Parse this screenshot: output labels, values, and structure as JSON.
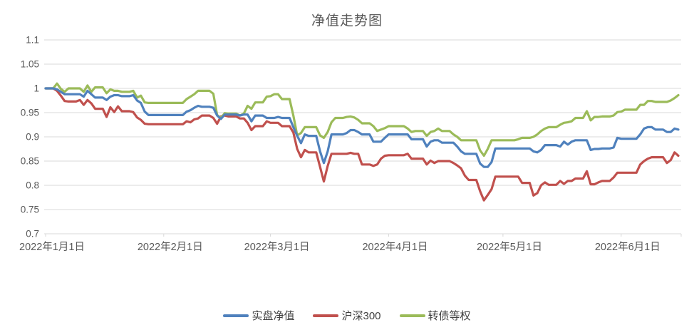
{
  "title": "净值走势图",
  "legend": [
    {
      "label": "实盘净值",
      "color": "#4F81BD"
    },
    {
      "label": "沪深300",
      "color": "#C0504D"
    },
    {
      "label": "转债等权",
      "color": "#9BBB59"
    }
  ],
  "colors": {
    "gridline": "#d9d9d9",
    "axis": "#bfbfbf",
    "tick_label": "#595959",
    "title": "#595959",
    "background": "#ffffff"
  },
  "chart_data": {
    "type": "line",
    "title": "净值走势图",
    "xlabel": "",
    "ylabel": "",
    "grid": true,
    "legend_position": "bottom",
    "sampling": "daily, 2022-01-01 to 2022-06-16, weekends/holidays flat",
    "y_axis": {
      "min": 0.7,
      "max": 1.1,
      "step": 0.05,
      "tick_labels": [
        "1.1",
        "1.05",
        "1",
        "0.95",
        "0.9",
        "0.85",
        "0.8",
        "0.75",
        "0.7"
      ]
    },
    "x_axis": {
      "tick_labels": [
        "2022年1月1日",
        "2022年2月1日",
        "2022年3月1日",
        "2022年4月1日",
        "2022年5月1日",
        "2022年6月1日"
      ],
      "tick_point_indices": [
        0,
        31,
        59,
        90,
        120,
        151
      ],
      "total_points": 167
    },
    "series": [
      {
        "name": "实盘净值",
        "color": "#4F81BD",
        "values": [
          1.0,
          1.0,
          1.0,
          0.998,
          0.993,
          0.988,
          0.988,
          0.988,
          0.988,
          0.988,
          0.983,
          0.995,
          0.988,
          0.981,
          0.981,
          0.981,
          0.976,
          0.983,
          0.986,
          0.986,
          0.984,
          0.984,
          0.984,
          0.986,
          0.975,
          0.97,
          0.952,
          0.945,
          0.945,
          0.945,
          0.945,
          0.945,
          0.945,
          0.945,
          0.945,
          0.945,
          0.945,
          0.952,
          0.955,
          0.96,
          0.964,
          0.962,
          0.962,
          0.962,
          0.96,
          0.944,
          0.937,
          0.946,
          0.946,
          0.946,
          0.946,
          0.944,
          0.946,
          0.946,
          0.932,
          0.944,
          0.944,
          0.944,
          0.939,
          0.939,
          0.939,
          0.941,
          0.939,
          0.939,
          0.939,
          0.92,
          0.902,
          0.887,
          0.905,
          0.902,
          0.902,
          0.902,
          0.87,
          0.846,
          0.87,
          0.905,
          0.905,
          0.905,
          0.905,
          0.908,
          0.914,
          0.914,
          0.91,
          0.905,
          0.905,
          0.905,
          0.89,
          0.89,
          0.89,
          0.898,
          0.905,
          0.905,
          0.905,
          0.905,
          0.905,
          0.905,
          0.895,
          0.895,
          0.895,
          0.895,
          0.88,
          0.89,
          0.893,
          0.893,
          0.888,
          0.888,
          0.888,
          0.888,
          0.88,
          0.87,
          0.865,
          0.865,
          0.865,
          0.865,
          0.845,
          0.838,
          0.838,
          0.848,
          0.876,
          0.876,
          0.876,
          0.876,
          0.876,
          0.876,
          0.876,
          0.876,
          0.876,
          0.876,
          0.87,
          0.868,
          0.873,
          0.883,
          0.883,
          0.883,
          0.883,
          0.88,
          0.89,
          0.884,
          0.89,
          0.893,
          0.893,
          0.893,
          0.893,
          0.873,
          0.875,
          0.875,
          0.876,
          0.876,
          0.876,
          0.878,
          0.898,
          0.896,
          0.896,
          0.896,
          0.896,
          0.896,
          0.905,
          0.917,
          0.92,
          0.92,
          0.915,
          0.915,
          0.915,
          0.91,
          0.91,
          0.917,
          0.915
        ]
      },
      {
        "name": "沪深300",
        "color": "#C0504D",
        "values": [
          1.0,
          1.0,
          1.0,
          0.995,
          0.985,
          0.974,
          0.973,
          0.973,
          0.973,
          0.976,
          0.966,
          0.976,
          0.969,
          0.958,
          0.958,
          0.958,
          0.941,
          0.961,
          0.951,
          0.963,
          0.953,
          0.953,
          0.953,
          0.951,
          0.94,
          0.935,
          0.927,
          0.926,
          0.926,
          0.926,
          0.926,
          0.926,
          0.926,
          0.926,
          0.926,
          0.926,
          0.926,
          0.932,
          0.93,
          0.936,
          0.938,
          0.944,
          0.944,
          0.944,
          0.939,
          0.927,
          0.942,
          0.944,
          0.942,
          0.942,
          0.942,
          0.938,
          0.938,
          0.929,
          0.914,
          0.922,
          0.922,
          0.922,
          0.932,
          0.929,
          0.929,
          0.929,
          0.922,
          0.922,
          0.922,
          0.909,
          0.875,
          0.858,
          0.873,
          0.868,
          0.868,
          0.868,
          0.838,
          0.808,
          0.84,
          0.865,
          0.865,
          0.865,
          0.865,
          0.865,
          0.867,
          0.865,
          0.865,
          0.843,
          0.843,
          0.843,
          0.84,
          0.843,
          0.855,
          0.861,
          0.862,
          0.862,
          0.862,
          0.862,
          0.862,
          0.865,
          0.855,
          0.855,
          0.855,
          0.855,
          0.843,
          0.851,
          0.846,
          0.85,
          0.85,
          0.85,
          0.85,
          0.846,
          0.841,
          0.835,
          0.82,
          0.811,
          0.811,
          0.811,
          0.788,
          0.769,
          0.78,
          0.792,
          0.818,
          0.818,
          0.818,
          0.818,
          0.818,
          0.818,
          0.818,
          0.805,
          0.805,
          0.805,
          0.779,
          0.784,
          0.8,
          0.806,
          0.801,
          0.801,
          0.801,
          0.809,
          0.803,
          0.809,
          0.809,
          0.814,
          0.814,
          0.814,
          0.829,
          0.802,
          0.802,
          0.806,
          0.809,
          0.809,
          0.809,
          0.816,
          0.826,
          0.826,
          0.826,
          0.826,
          0.826,
          0.826,
          0.843,
          0.85,
          0.855,
          0.858,
          0.858,
          0.858,
          0.858,
          0.846,
          0.852,
          0.868,
          0.861
        ]
      },
      {
        "name": "转债等权",
        "color": "#9BBB59",
        "values": [
          1.0,
          1.0,
          1.0,
          1.01,
          0.999,
          0.993,
          1.0,
          1.0,
          1.0,
          1.0,
          0.993,
          1.006,
          0.993,
          1.002,
          1.002,
          1.002,
          0.99,
          0.998,
          0.995,
          0.995,
          0.993,
          0.993,
          0.993,
          0.995,
          0.981,
          0.985,
          0.971,
          0.97,
          0.97,
          0.97,
          0.97,
          0.97,
          0.97,
          0.97,
          0.97,
          0.97,
          0.97,
          0.978,
          0.983,
          0.988,
          0.995,
          0.995,
          0.995,
          0.995,
          0.989,
          0.945,
          0.939,
          0.949,
          0.948,
          0.948,
          0.948,
          0.944,
          0.948,
          0.964,
          0.958,
          0.971,
          0.971,
          0.971,
          0.983,
          0.984,
          0.988,
          0.988,
          0.978,
          0.978,
          0.978,
          0.944,
          0.903,
          0.908,
          0.92,
          0.92,
          0.92,
          0.92,
          0.903,
          0.898,
          0.91,
          0.93,
          0.939,
          0.939,
          0.939,
          0.941,
          0.942,
          0.94,
          0.935,
          0.928,
          0.928,
          0.928,
          0.922,
          0.912,
          0.915,
          0.918,
          0.922,
          0.922,
          0.922,
          0.922,
          0.922,
          0.917,
          0.91,
          0.912,
          0.912,
          0.912,
          0.902,
          0.91,
          0.912,
          0.917,
          0.912,
          0.912,
          0.912,
          0.905,
          0.9,
          0.893,
          0.893,
          0.893,
          0.893,
          0.893,
          0.872,
          0.861,
          0.875,
          0.893,
          0.893,
          0.893,
          0.893,
          0.893,
          0.893,
          0.893,
          0.895,
          0.898,
          0.898,
          0.898,
          0.9,
          0.905,
          0.912,
          0.917,
          0.92,
          0.92,
          0.92,
          0.925,
          0.929,
          0.93,
          0.932,
          0.939,
          0.939,
          0.939,
          0.953,
          0.934,
          0.941,
          0.941,
          0.942,
          0.942,
          0.942,
          0.944,
          0.951,
          0.952,
          0.956,
          0.956,
          0.956,
          0.956,
          0.966,
          0.966,
          0.974,
          0.974,
          0.972,
          0.972,
          0.972,
          0.972,
          0.975,
          0.98,
          0.986
        ]
      }
    ]
  }
}
